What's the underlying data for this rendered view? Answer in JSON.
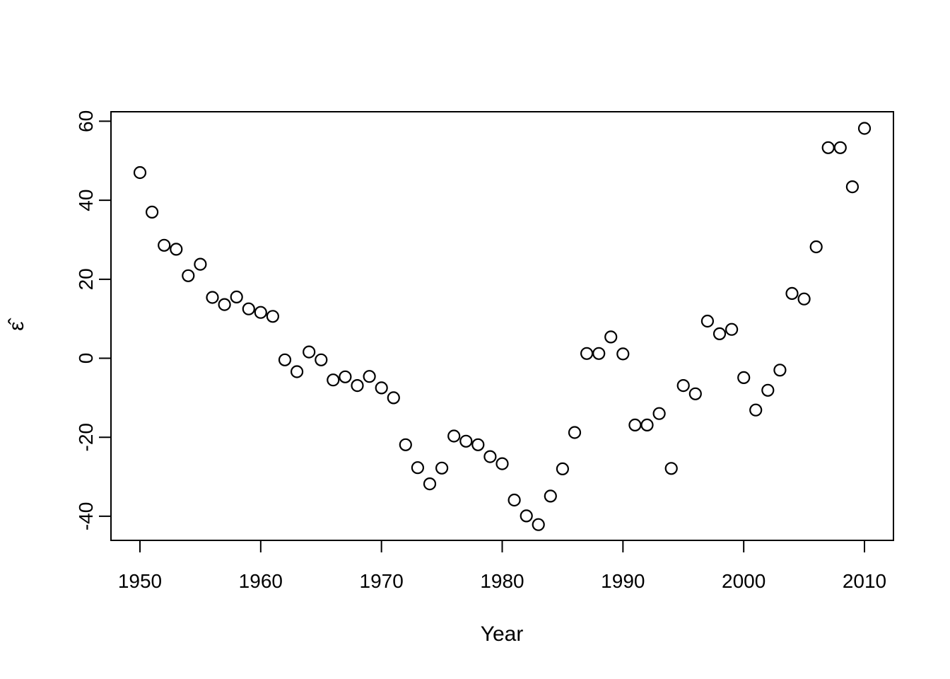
{
  "figure": {
    "background": "#ffffff",
    "foreground": "#000000"
  },
  "chart_data": {
    "type": "scatter",
    "title": "",
    "xlabel": "Year",
    "ylabel": "ε̂",
    "marker": "open-circle",
    "marker_color": "#000000",
    "grid": false,
    "legend": null,
    "xlim": [
      1947.6,
      2012.4
    ],
    "ylim": [
      -46.1,
      62.4
    ],
    "xticks": [
      1950,
      1960,
      1970,
      1980,
      1990,
      2000,
      2010
    ],
    "yticks": [
      -40,
      -20,
      0,
      20,
      40,
      60
    ],
    "x": [
      1950,
      1951,
      1952,
      1953,
      1954,
      1955,
      1956,
      1957,
      1958,
      1959,
      1960,
      1961,
      1962,
      1963,
      1964,
      1965,
      1966,
      1967,
      1968,
      1969,
      1970,
      1971,
      1972,
      1973,
      1974,
      1975,
      1976,
      1977,
      1978,
      1979,
      1980,
      1981,
      1982,
      1983,
      1984,
      1985,
      1986,
      1987,
      1988,
      1989,
      1990,
      1991,
      1992,
      1993,
      1994,
      1995,
      1996,
      1997,
      1998,
      1999,
      2000,
      2001,
      2002,
      2003,
      2004,
      2005,
      2006,
      2007,
      2008,
      2009,
      2010
    ],
    "y": [
      47.0,
      37.0,
      28.6,
      27.6,
      20.9,
      23.8,
      15.4,
      13.6,
      15.5,
      12.5,
      11.6,
      10.6,
      -0.4,
      -3.4,
      1.6,
      -0.4,
      -5.5,
      -4.7,
      -6.9,
      -4.6,
      -7.5,
      -10.0,
      -21.9,
      -27.7,
      -31.8,
      -27.8,
      -19.7,
      -21.0,
      -21.9,
      -24.9,
      -26.7,
      -35.9,
      -39.9,
      -42.1,
      -34.9,
      -28.0,
      -18.8,
      1.2,
      1.2,
      5.4,
      1.1,
      -16.9,
      -16.9,
      -14.0,
      -27.9,
      -6.9,
      -9.0,
      9.4,
      6.2,
      7.3,
      -4.9,
      -13.1,
      -8.1,
      -3.0,
      16.4,
      15.0,
      28.2,
      53.3,
      53.3,
      43.4,
      58.2
    ]
  }
}
